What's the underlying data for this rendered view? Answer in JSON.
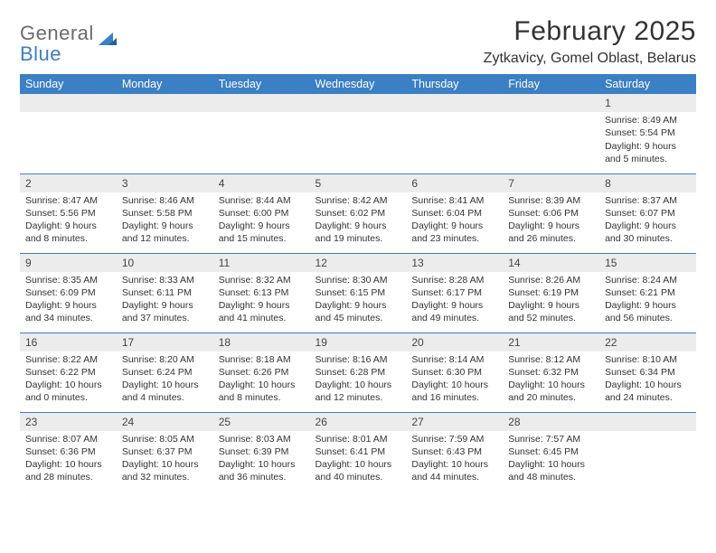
{
  "logo": {
    "line1": "General",
    "line2": "Blue"
  },
  "title": "February 2025",
  "location": "Zytkavicy, Gomel Oblast, Belarus",
  "colors": {
    "header_bg": "#3b7fc4",
    "header_text": "#ffffff",
    "daynum_bg": "#ececec",
    "border": "#3b7fc4",
    "text": "#333333",
    "logo_gray": "#6b6b6b",
    "logo_blue": "#3b7fc4",
    "page_bg": "#ffffff"
  },
  "typography": {
    "title_fontsize": 30,
    "location_fontsize": 16,
    "header_fontsize": 12.5,
    "cell_fontsize": 10.5,
    "daynum_fontsize": 12
  },
  "day_headers": [
    "Sunday",
    "Monday",
    "Tuesday",
    "Wednesday",
    "Thursday",
    "Friday",
    "Saturday"
  ],
  "weeks": [
    [
      null,
      null,
      null,
      null,
      null,
      null,
      {
        "n": "1",
        "sr": "Sunrise: 8:49 AM",
        "ss": "Sunset: 5:54 PM",
        "dl": "Daylight: 9 hours and 5 minutes."
      }
    ],
    [
      {
        "n": "2",
        "sr": "Sunrise: 8:47 AM",
        "ss": "Sunset: 5:56 PM",
        "dl": "Daylight: 9 hours and 8 minutes."
      },
      {
        "n": "3",
        "sr": "Sunrise: 8:46 AM",
        "ss": "Sunset: 5:58 PM",
        "dl": "Daylight: 9 hours and 12 minutes."
      },
      {
        "n": "4",
        "sr": "Sunrise: 8:44 AM",
        "ss": "Sunset: 6:00 PM",
        "dl": "Daylight: 9 hours and 15 minutes."
      },
      {
        "n": "5",
        "sr": "Sunrise: 8:42 AM",
        "ss": "Sunset: 6:02 PM",
        "dl": "Daylight: 9 hours and 19 minutes."
      },
      {
        "n": "6",
        "sr": "Sunrise: 8:41 AM",
        "ss": "Sunset: 6:04 PM",
        "dl": "Daylight: 9 hours and 23 minutes."
      },
      {
        "n": "7",
        "sr": "Sunrise: 8:39 AM",
        "ss": "Sunset: 6:06 PM",
        "dl": "Daylight: 9 hours and 26 minutes."
      },
      {
        "n": "8",
        "sr": "Sunrise: 8:37 AM",
        "ss": "Sunset: 6:07 PM",
        "dl": "Daylight: 9 hours and 30 minutes."
      }
    ],
    [
      {
        "n": "9",
        "sr": "Sunrise: 8:35 AM",
        "ss": "Sunset: 6:09 PM",
        "dl": "Daylight: 9 hours and 34 minutes."
      },
      {
        "n": "10",
        "sr": "Sunrise: 8:33 AM",
        "ss": "Sunset: 6:11 PM",
        "dl": "Daylight: 9 hours and 37 minutes."
      },
      {
        "n": "11",
        "sr": "Sunrise: 8:32 AM",
        "ss": "Sunset: 6:13 PM",
        "dl": "Daylight: 9 hours and 41 minutes."
      },
      {
        "n": "12",
        "sr": "Sunrise: 8:30 AM",
        "ss": "Sunset: 6:15 PM",
        "dl": "Daylight: 9 hours and 45 minutes."
      },
      {
        "n": "13",
        "sr": "Sunrise: 8:28 AM",
        "ss": "Sunset: 6:17 PM",
        "dl": "Daylight: 9 hours and 49 minutes."
      },
      {
        "n": "14",
        "sr": "Sunrise: 8:26 AM",
        "ss": "Sunset: 6:19 PM",
        "dl": "Daylight: 9 hours and 52 minutes."
      },
      {
        "n": "15",
        "sr": "Sunrise: 8:24 AM",
        "ss": "Sunset: 6:21 PM",
        "dl": "Daylight: 9 hours and 56 minutes."
      }
    ],
    [
      {
        "n": "16",
        "sr": "Sunrise: 8:22 AM",
        "ss": "Sunset: 6:22 PM",
        "dl": "Daylight: 10 hours and 0 minutes."
      },
      {
        "n": "17",
        "sr": "Sunrise: 8:20 AM",
        "ss": "Sunset: 6:24 PM",
        "dl": "Daylight: 10 hours and 4 minutes."
      },
      {
        "n": "18",
        "sr": "Sunrise: 8:18 AM",
        "ss": "Sunset: 6:26 PM",
        "dl": "Daylight: 10 hours and 8 minutes."
      },
      {
        "n": "19",
        "sr": "Sunrise: 8:16 AM",
        "ss": "Sunset: 6:28 PM",
        "dl": "Daylight: 10 hours and 12 minutes."
      },
      {
        "n": "20",
        "sr": "Sunrise: 8:14 AM",
        "ss": "Sunset: 6:30 PM",
        "dl": "Daylight: 10 hours and 16 minutes."
      },
      {
        "n": "21",
        "sr": "Sunrise: 8:12 AM",
        "ss": "Sunset: 6:32 PM",
        "dl": "Daylight: 10 hours and 20 minutes."
      },
      {
        "n": "22",
        "sr": "Sunrise: 8:10 AM",
        "ss": "Sunset: 6:34 PM",
        "dl": "Daylight: 10 hours and 24 minutes."
      }
    ],
    [
      {
        "n": "23",
        "sr": "Sunrise: 8:07 AM",
        "ss": "Sunset: 6:36 PM",
        "dl": "Daylight: 10 hours and 28 minutes."
      },
      {
        "n": "24",
        "sr": "Sunrise: 8:05 AM",
        "ss": "Sunset: 6:37 PM",
        "dl": "Daylight: 10 hours and 32 minutes."
      },
      {
        "n": "25",
        "sr": "Sunrise: 8:03 AM",
        "ss": "Sunset: 6:39 PM",
        "dl": "Daylight: 10 hours and 36 minutes."
      },
      {
        "n": "26",
        "sr": "Sunrise: 8:01 AM",
        "ss": "Sunset: 6:41 PM",
        "dl": "Daylight: 10 hours and 40 minutes."
      },
      {
        "n": "27",
        "sr": "Sunrise: 7:59 AM",
        "ss": "Sunset: 6:43 PM",
        "dl": "Daylight: 10 hours and 44 minutes."
      },
      {
        "n": "28",
        "sr": "Sunrise: 7:57 AM",
        "ss": "Sunset: 6:45 PM",
        "dl": "Daylight: 10 hours and 48 minutes."
      },
      null
    ]
  ]
}
